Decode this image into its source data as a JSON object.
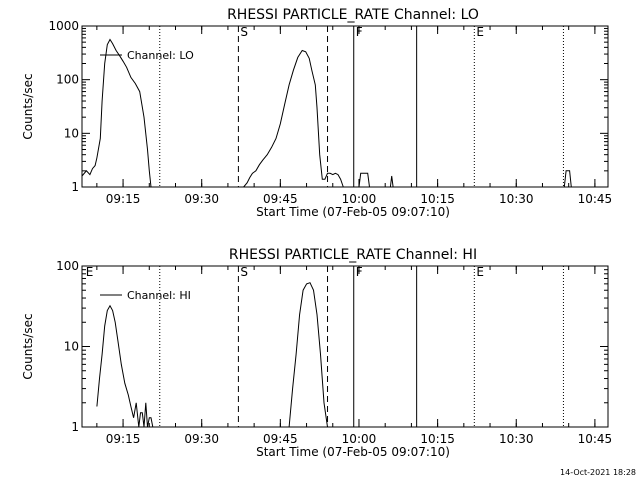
{
  "colors": {
    "background": "#ffffff",
    "foreground": "#000000"
  },
  "footer": {
    "timestamp": "14-Oct-2021 18:28"
  },
  "chart_data": [
    {
      "type": "line",
      "title": "RHESSI PARTICLE_RATE Channel: LO",
      "xlabel": "Start Time (07-Feb-05 09:07:10)",
      "ylabel": "Counts/sec",
      "y_scale": "log",
      "ylim": [
        1,
        1000
      ],
      "y_ticks": [
        1,
        10,
        100,
        1000
      ],
      "y_tick_labels": [
        "1",
        "10",
        "100",
        "1000"
      ],
      "xlim": [
        "09:07:10",
        "10:47:30"
      ],
      "x_ticks": [
        "09:15",
        "09:30",
        "09:45",
        "10:00",
        "10:15",
        "10:30",
        "10:45"
      ],
      "legend": {
        "label": "Channel: LO",
        "position": "top-left"
      },
      "event_lines": [
        {
          "time": "09:22",
          "style": "dotted",
          "label": ""
        },
        {
          "time": "09:37",
          "style": "dashed",
          "label": "S"
        },
        {
          "time": "09:54",
          "style": "dashed",
          "label": ""
        },
        {
          "time": "09:59",
          "style": "solid",
          "label": "F"
        },
        {
          "time": "10:11",
          "style": "solid",
          "label": ""
        },
        {
          "time": "10:22",
          "style": "dotted",
          "label": "E"
        },
        {
          "time": "10:39",
          "style": "dotted",
          "label": ""
        }
      ],
      "series": [
        {
          "name": "Channel: LO",
          "x": [
            "09:07:10",
            "09:08",
            "09:08:40",
            "09:09:10",
            "09:09:40",
            "09:10",
            "09:10:40",
            "09:11",
            "09:11:30",
            "09:12",
            "09:12:30",
            "09:13",
            "09:13:40",
            "09:14:20",
            "09:15",
            "09:15:40",
            "09:16:30",
            "09:17:20",
            "09:18:10",
            "09:19",
            "09:19:40",
            "09:20",
            "09:20:20"
          ],
          "y": [
            1.6,
            2,
            1.7,
            2.2,
            2.5,
            3.5,
            8,
            40,
            200,
            450,
            560,
            470,
            350,
            280,
            220,
            170,
            110,
            85,
            60,
            20,
            5,
            2,
            1
          ]
        },
        {
          "name": "",
          "x": [
            "09:37:30",
            "09:38",
            "09:38:40",
            "09:39:10",
            "09:39:40",
            "09:40:20",
            "09:41",
            "09:41:40",
            "09:42:30",
            "09:43:20",
            "09:44:10",
            "09:45",
            "09:45:50",
            "09:46:40",
            "09:47:30",
            "09:48:20",
            "09:49:10",
            "09:49:50",
            "09:50:30",
            "09:51",
            "09:51:40",
            "09:52",
            "09:52:30",
            "09:53",
            "09:53:30",
            "09:54",
            "09:54:30",
            "09:55",
            "09:55:30",
            "09:56",
            "09:56:30",
            "09:57"
          ],
          "y": [
            1,
            1,
            1.2,
            1.5,
            1.8,
            2,
            2.6,
            3.2,
            4,
            5.5,
            8,
            15,
            35,
            80,
            150,
            260,
            350,
            330,
            250,
            150,
            80,
            30,
            4,
            1.4,
            1.4,
            1.8,
            1.8,
            1.7,
            1.8,
            1.7,
            1.4,
            1
          ]
        },
        {
          "name": "",
          "x": [
            "10:00",
            "10:00:20",
            "10:01:40",
            "10:02"
          ],
          "y": [
            1,
            1.8,
            1.8,
            1
          ]
        },
        {
          "name": "",
          "x": [
            "10:06",
            "10:06:15",
            "10:06:30"
          ],
          "y": [
            1,
            1.6,
            1
          ]
        },
        {
          "name": "",
          "x": [
            "10:39:10",
            "10:39:30",
            "10:40:10",
            "10:40:30"
          ],
          "y": [
            1,
            2,
            2,
            1
          ]
        }
      ]
    },
    {
      "type": "line",
      "title": "RHESSI PARTICLE_RATE Channel: HI",
      "xlabel": "Start Time (07-Feb-05 09:07:10)",
      "ylabel": "Counts/sec",
      "y_scale": "log",
      "ylim": [
        1,
        100
      ],
      "y_ticks": [
        1,
        10,
        100
      ],
      "y_tick_labels": [
        "1",
        "10",
        "100"
      ],
      "xlim": [
        "09:07:10",
        "10:47:30"
      ],
      "x_ticks": [
        "09:15",
        "09:30",
        "09:45",
        "10:00",
        "10:15",
        "10:30",
        "10:45"
      ],
      "legend": {
        "label": "Channel: HI",
        "position": "top-left"
      },
      "event_lines": [
        {
          "time": "09:07:30",
          "style": "none",
          "label": "E"
        },
        {
          "time": "09:22",
          "style": "dotted",
          "label": ""
        },
        {
          "time": "09:37",
          "style": "dashed",
          "label": "S"
        },
        {
          "time": "09:54",
          "style": "dashed",
          "label": ""
        },
        {
          "time": "09:59",
          "style": "solid",
          "label": "F"
        },
        {
          "time": "10:11",
          "style": "solid",
          "label": ""
        },
        {
          "time": "10:22",
          "style": "dotted",
          "label": "E"
        },
        {
          "time": "10:39",
          "style": "dotted",
          "label": ""
        }
      ],
      "series": [
        {
          "name": "Channel: HI",
          "x": [
            "09:10",
            "09:10:30",
            "09:11",
            "09:11:30",
            "09:12",
            "09:12:30",
            "09:13",
            "09:13:30",
            "09:14",
            "09:14:40",
            "09:15:20",
            "09:16",
            "09:16:30",
            "09:17",
            "09:17:30",
            "09:18",
            "09:18:20",
            "09:18:40",
            "09:19",
            "09:19:20",
            "09:19:40",
            "09:20",
            "09:20:20",
            "09:20:40",
            "09:21"
          ],
          "y": [
            1.8,
            4,
            8,
            18,
            28,
            32,
            28,
            20,
            12,
            6,
            3.5,
            2.5,
            1.8,
            1.3,
            2,
            1,
            1.5,
            1.5,
            1,
            2,
            1,
            1.3,
            1.3,
            1,
            1
          ]
        },
        {
          "name": "",
          "x": [
            "09:46:40",
            "09:47:20",
            "09:48",
            "09:48:40",
            "09:49:20",
            "09:50",
            "09:50:40",
            "09:51:20",
            "09:52",
            "09:52:40",
            "09:53:20",
            "09:54"
          ],
          "y": [
            1,
            3,
            8,
            25,
            50,
            60,
            62,
            50,
            25,
            8,
            2,
            1
          ]
        }
      ]
    }
  ]
}
